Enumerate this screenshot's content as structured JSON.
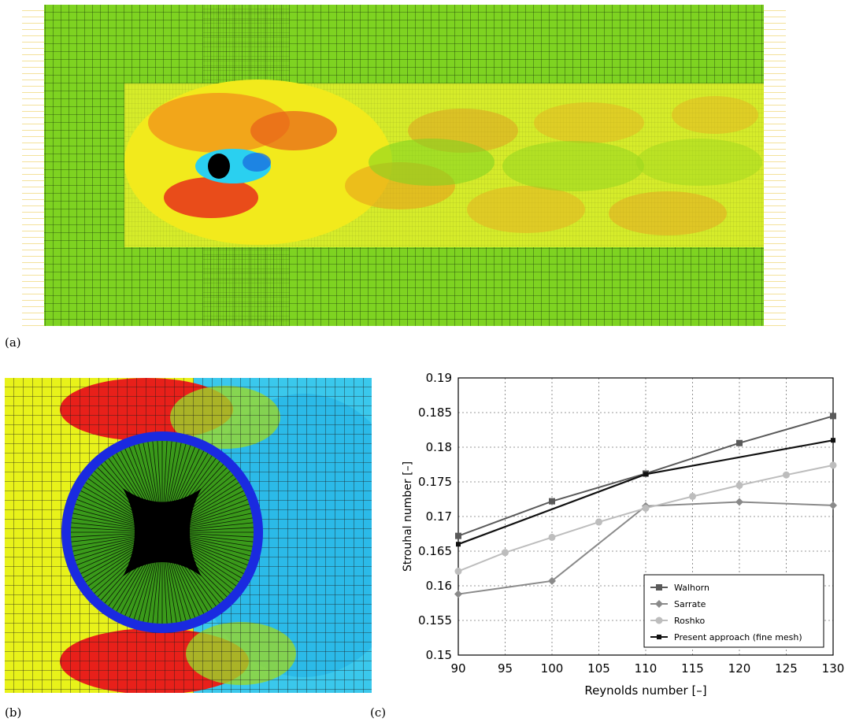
{
  "panels": {
    "a": {
      "label": "(a)"
    },
    "b": {
      "label": "(b)"
    },
    "c": {
      "label": "(c)"
    }
  },
  "colors": {
    "walhorn": "#5a5a5a",
    "sarrate": "#8a8a8a",
    "roshko": "#bdbdbd",
    "present": "#111111",
    "field_green": "#7ed321",
    "field_yellow": "#e8f21a",
    "field_red": "#e8201a",
    "field_blue": "#2ad0f0"
  },
  "chart_data": {
    "type": "line",
    "xlabel": "Reynolds number [–]",
    "ylabel": "Strouhal number [–]",
    "xlim": [
      90,
      130
    ],
    "ylim": [
      0.15,
      0.19
    ],
    "xticks": [
      "90",
      "95",
      "100",
      "105",
      "110",
      "115",
      "120",
      "125",
      "130"
    ],
    "yticks": [
      "0.15",
      "0.155",
      "0.16",
      "0.165",
      "0.17",
      "0.175",
      "0.18",
      "0.185",
      "0.19"
    ],
    "grid": true,
    "legend_position": "bottom-right",
    "series": [
      {
        "name": "Walhorn",
        "marker": "square",
        "x": [
          90,
          100,
          110,
          120,
          130
        ],
        "values": [
          0.1672,
          0.1722,
          0.1762,
          0.1806,
          0.1845
        ]
      },
      {
        "name": "Sarrate",
        "marker": "diamond",
        "x": [
          90,
          100,
          110,
          120,
          130
        ],
        "values": [
          0.1588,
          0.1607,
          0.1715,
          0.1721,
          0.1716
        ]
      },
      {
        "name": "Roshko",
        "marker": "circle",
        "x": [
          90,
          95,
          100,
          105,
          110,
          115,
          120,
          125,
          130
        ],
        "values": [
          0.1621,
          0.1648,
          0.167,
          0.1692,
          0.1712,
          0.1729,
          0.1745,
          0.176,
          0.1774
        ]
      },
      {
        "name": "Present approach (fine mesh)",
        "marker": "small-square",
        "x": [
          90,
          110,
          130
        ],
        "values": [
          0.166,
          0.1761,
          0.181
        ]
      }
    ]
  }
}
